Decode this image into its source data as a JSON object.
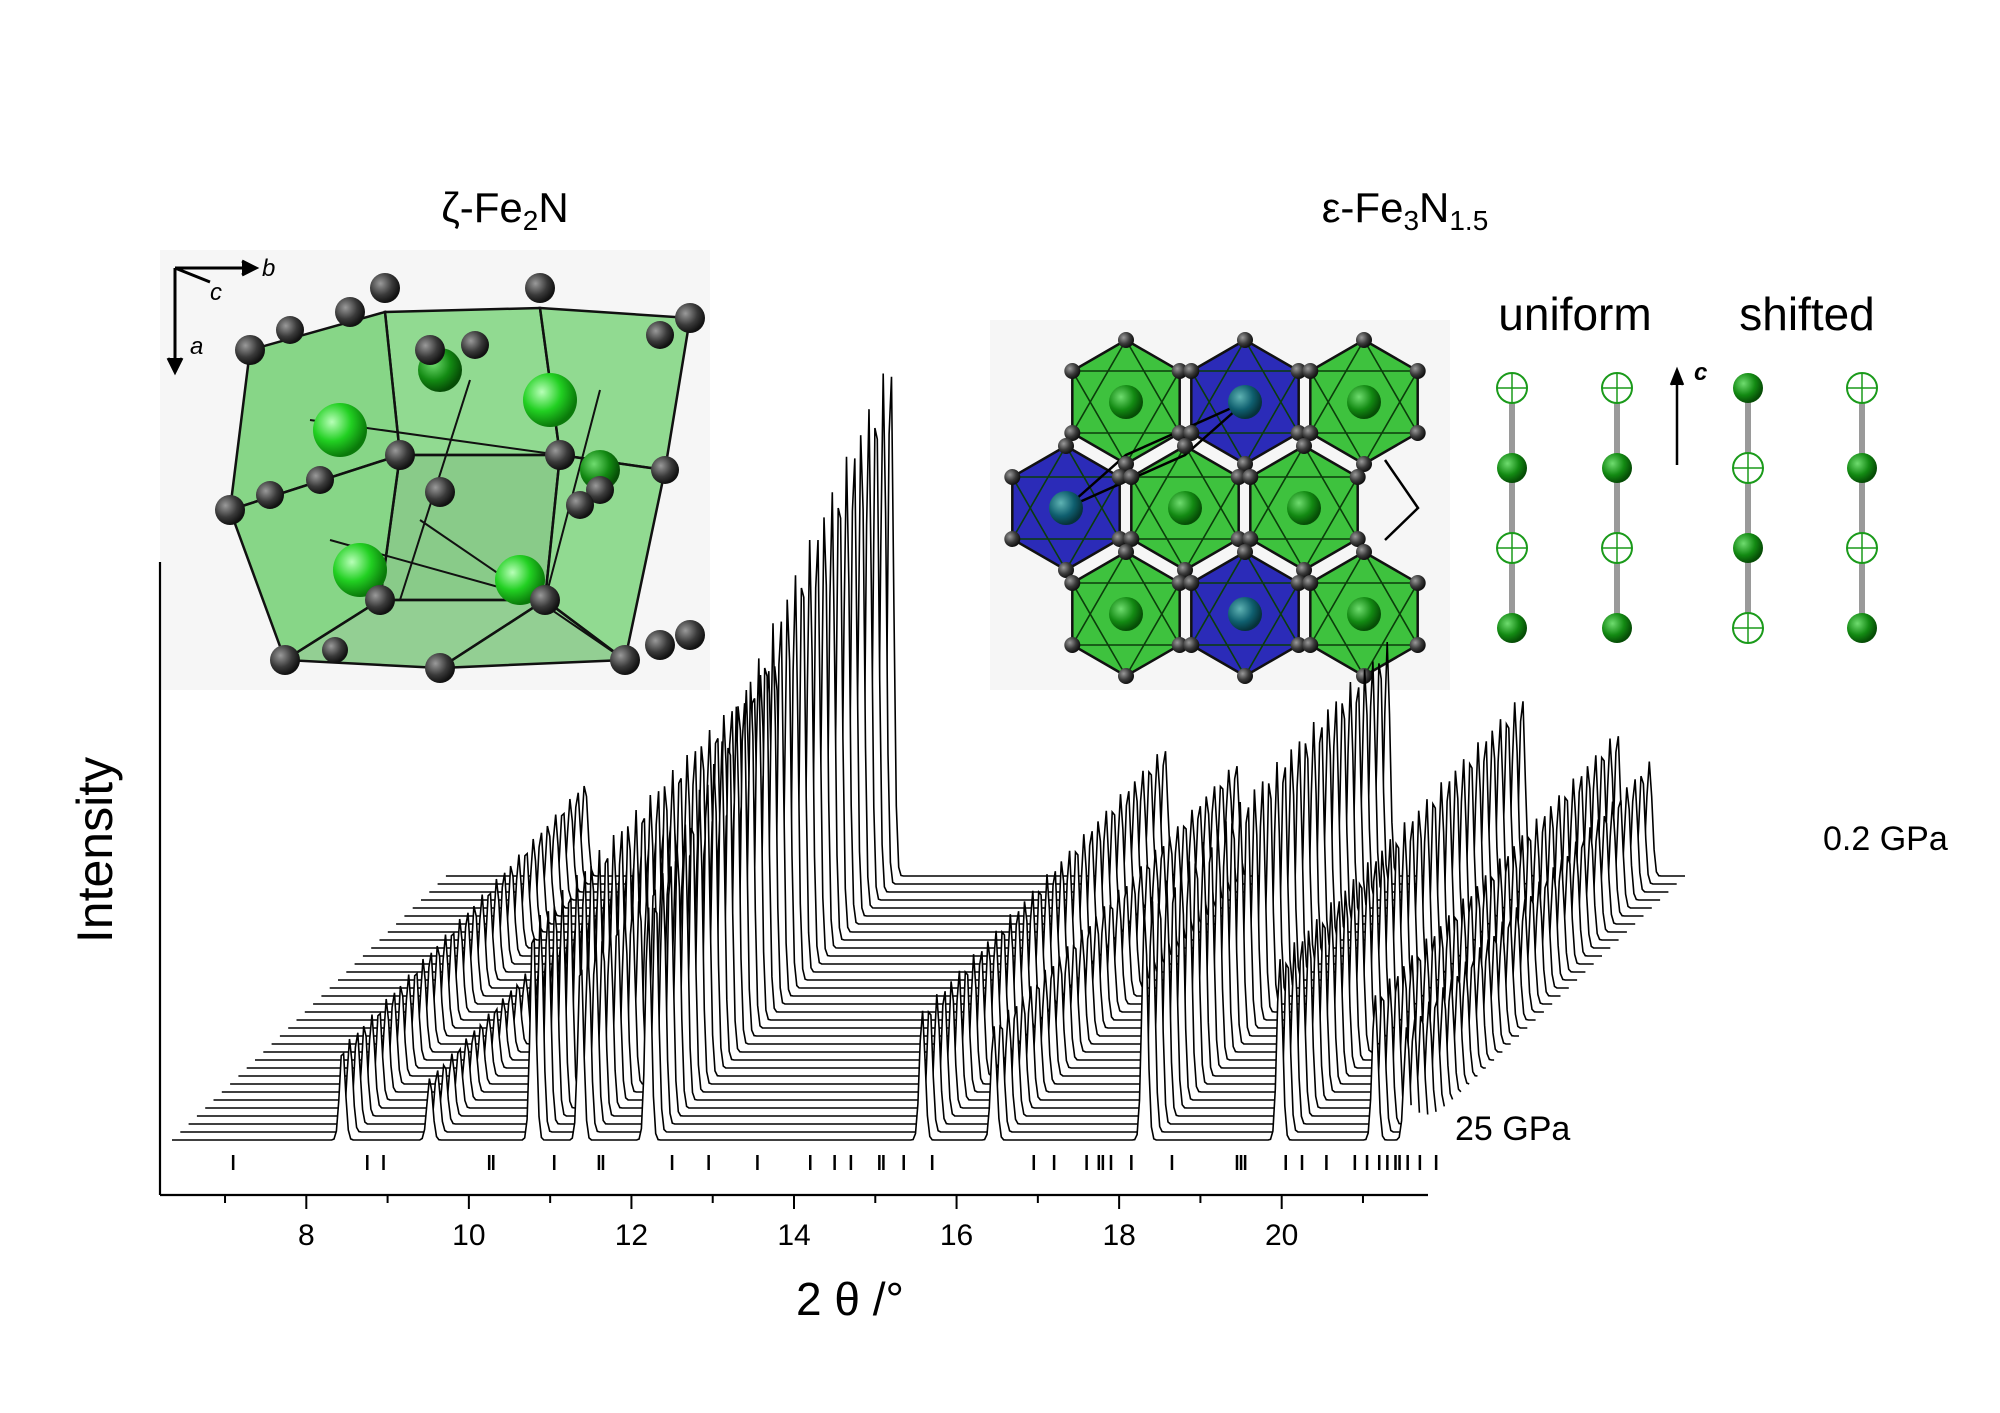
{
  "chart_data": {
    "type": "line",
    "title": "",
    "xlabel": "2 θ /°",
    "ylabel": "Intensity",
    "xlim": [
      6.2,
      21.8
    ],
    "x_ticks": [
      8,
      10,
      12,
      14,
      16,
      18,
      20
    ],
    "x_minor_ticks": [
      7,
      9,
      11,
      13,
      15,
      17,
      19,
      21
    ],
    "pressure_top_label": "0.2 GPa",
    "pressure_bottom_label": "25 GPa",
    "pattern_count": 34,
    "peaks": [
      {
        "two_theta": 8.5,
        "height": 0.18
      },
      {
        "two_theta": 9.6,
        "height": 0.12
      },
      {
        "two_theta": 10.9,
        "height": 0.42
      },
      {
        "two_theta": 11.5,
        "height": 0.35
      },
      {
        "two_theta": 12.35,
        "height": 1.0
      },
      {
        "two_theta": 15.8,
        "height": 0.25
      },
      {
        "two_theta": 16.7,
        "height": 0.22
      },
      {
        "two_theta": 18.6,
        "height": 0.45
      },
      {
        "two_theta": 20.3,
        "height": 0.35
      },
      {
        "two_theta": 21.5,
        "height": 0.28
      },
      {
        "two_theta": 21.9,
        "height": 0.22
      }
    ],
    "reflection_ticks": [
      7.1,
      8.75,
      8.95,
      10.25,
      10.3,
      11.05,
      11.6,
      11.65,
      12.5,
      12.95,
      13.55,
      14.2,
      14.5,
      14.7,
      15.05,
      15.1,
      15.35,
      15.7,
      16.95,
      17.2,
      17.6,
      17.75,
      17.8,
      17.9,
      18.15,
      18.65,
      19.45,
      19.5,
      19.55,
      20.05,
      20.25,
      20.55,
      20.9,
      21.05,
      21.2,
      21.3,
      21.4,
      21.45,
      21.55,
      21.7,
      21.9
    ]
  },
  "structures": {
    "left_title": "ζ-Fe₂N",
    "right_title": "ε-Fe₃N₁.₅",
    "axis_a": "a",
    "axis_b": "b",
    "axis_c": "c",
    "label_uniform": "uniform",
    "label_shifted": "shifted",
    "label_c_arrow": "c"
  },
  "colors": {
    "green_polyhedron": "#3ec23e",
    "dark_green": "#1a8a1a",
    "blue_polyhedron": "#2b2bb8",
    "iron_atom": "#3a3a3a",
    "nitrogen_atom": "#2ae82a",
    "line": "#000000"
  }
}
